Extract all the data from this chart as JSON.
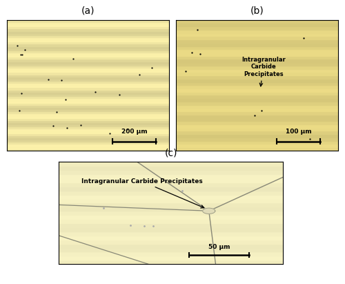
{
  "fig_width": 5.0,
  "fig_height": 4.11,
  "dpi": 100,
  "background_color": "#ffffff",
  "panel_labels": [
    "(a)",
    "(b)",
    "(c)"
  ],
  "panel_label_fontsize": 10,
  "scale_bar_a": "200 μm",
  "scale_bar_b": "100 μm",
  "scale_bar_c": "50 μm",
  "annotation_b": "Intragranular\nCarbide\nPrecipitates",
  "annotation_c": "Intragranular Carbide Precipitates",
  "bg_base_a": [
    0.92,
    0.88,
    0.62
  ],
  "bg_base_b": [
    0.88,
    0.82,
    0.5
  ],
  "bg_base_c": [
    0.95,
    0.93,
    0.75
  ],
  "grain_color_a": "#1a1a1a",
  "grain_color_b": "#1a1a1a",
  "grain_color_c": "#888877"
}
